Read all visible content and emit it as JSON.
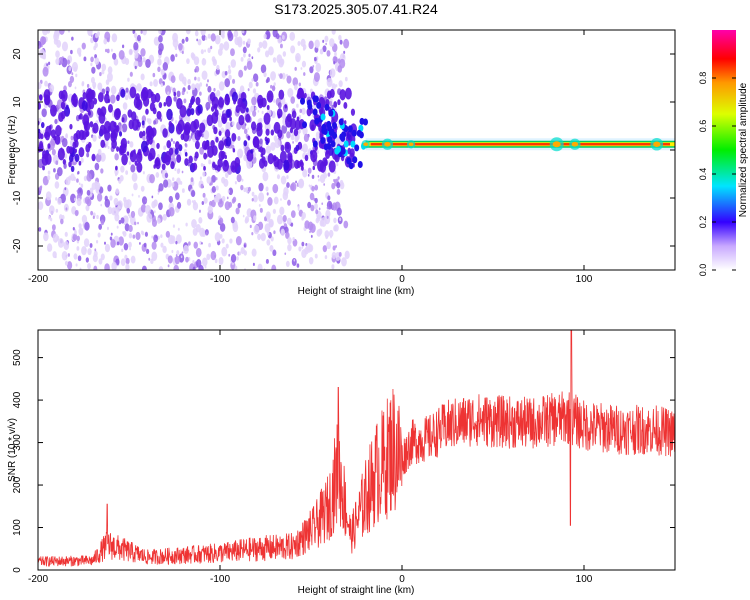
{
  "title": "S173.2025.305.07.41.R24",
  "chart_data": [
    {
      "type": "heatmap",
      "xlabel": "Height of straight line (km)",
      "ylabel": "Frequency (Hz)",
      "xlim": [
        -200,
        150
      ],
      "ylim": [
        -25,
        25
      ],
      "xticks": [
        -200,
        -100,
        0,
        100
      ],
      "yticks": [
        -20,
        -10,
        0,
        10,
        20
      ],
      "colorbar": {
        "label": "Normalized spectral amplitude",
        "range": [
          0,
          1
        ],
        "ticks": [
          "0.0",
          "0.2",
          "0.4",
          "0.6",
          "0.8"
        ]
      },
      "features": {
        "scatter_region_x": [
          -200,
          -30
        ],
        "narrowband_line_x": [
          -20,
          150
        ],
        "narrowband_freq_hz": 1.2
      }
    },
    {
      "type": "line",
      "xlabel": "Height of straight line (km)",
      "ylabel": "SNR (10 * v/v)",
      "xlim": [
        -200,
        150
      ],
      "ylim": [
        0,
        565
      ],
      "xticks": [
        -200,
        -100,
        0,
        100
      ],
      "yticks": [
        0,
        100,
        200,
        300,
        400,
        500
      ],
      "color": "#ee3333",
      "x_anchor": [
        -200,
        -170,
        -162,
        -140,
        -100,
        -80,
        -60,
        -48,
        -40,
        -35,
        -28,
        -20,
        -14,
        -10,
        -5,
        0,
        5,
        15,
        25,
        40,
        50,
        70,
        85,
        92,
        100,
        120,
        140,
        150
      ],
      "y_anchor": [
        20,
        22,
        60,
        30,
        40,
        50,
        55,
        100,
        150,
        240,
        80,
        170,
        230,
        250,
        290,
        260,
        300,
        310,
        340,
        355,
        350,
        345,
        355,
        360,
        340,
        330,
        330,
        320
      ],
      "spikes": [
        {
          "x": -162,
          "y": 155
        },
        {
          "x": -35,
          "y": 430
        },
        {
          "x": 93,
          "y": 565
        },
        {
          "x": 92.5,
          "y": 105
        }
      ]
    }
  ]
}
